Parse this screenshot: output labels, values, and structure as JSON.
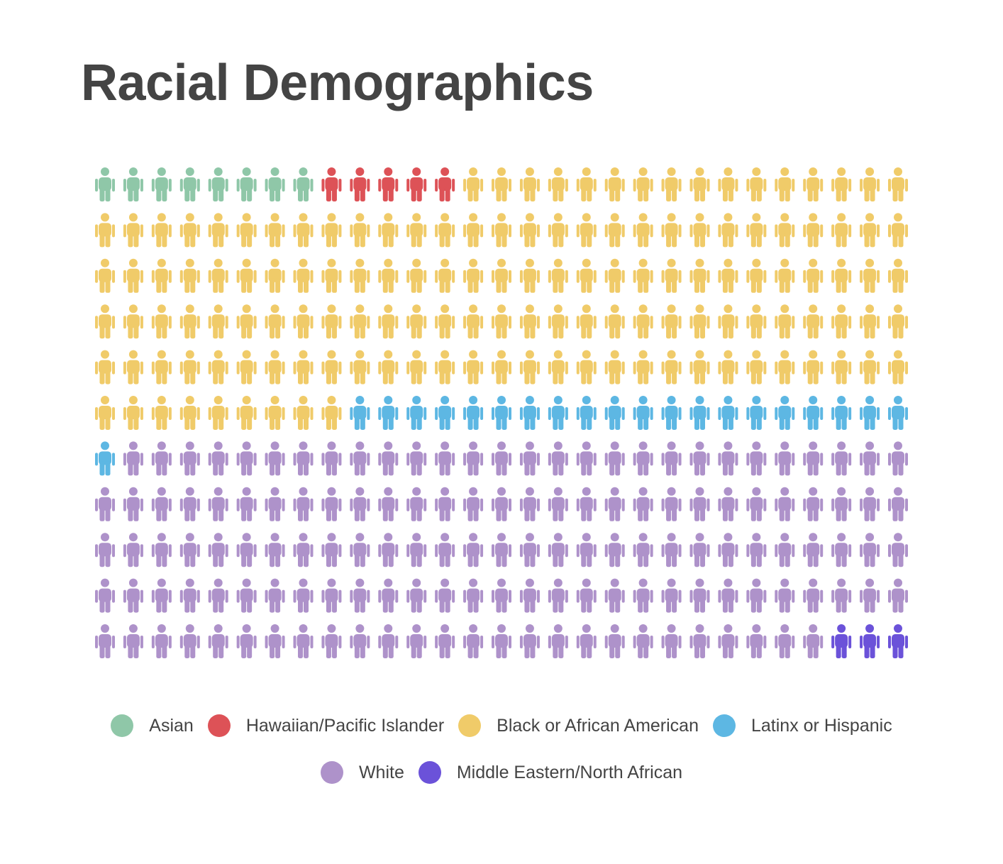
{
  "chart_data": {
    "type": "pictogram",
    "title": "Racial Demographics",
    "icon": "person-icon",
    "grid": {
      "rows": 11,
      "columns": 29
    },
    "total": 319,
    "categories": [
      {
        "name": "Asian",
        "count": 8,
        "color": "#8FC7A8"
      },
      {
        "name": "Hawaiian/Pacific Islander",
        "count": 5,
        "color": "#DD5257"
      },
      {
        "name": "Black or African American",
        "count": 141,
        "color": "#F0CB69"
      },
      {
        "name": "Latinx or Hispanic",
        "count": 21,
        "color": "#5DB7E3"
      },
      {
        "name": "White",
        "count": 141,
        "color": "#AE92CA"
      },
      {
        "name": "Middle Eastern/North African",
        "count": 3,
        "color": "#6B52D9"
      }
    ],
    "legend_position": "bottom-center"
  }
}
